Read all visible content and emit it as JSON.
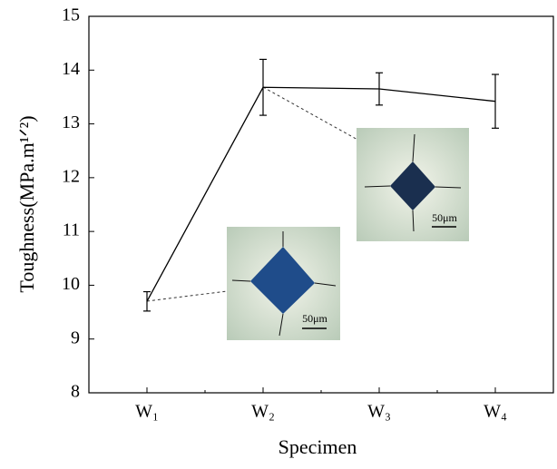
{
  "chart_data": {
    "type": "line",
    "x_label": "Specimen",
    "y_label": "Toughness(MPa.m¹ᐟ²)",
    "categories": [
      "W₁",
      "W₂",
      "W₃",
      "W₄"
    ],
    "values": [
      9.7,
      13.68,
      13.65,
      13.42
    ],
    "errors": [
      0.18,
      0.52,
      0.3,
      0.5
    ],
    "color": "#000000",
    "ylim": [
      8,
      15
    ],
    "yticks": [
      8,
      9,
      10,
      11,
      12,
      13,
      14,
      15
    ],
    "annotations": [
      "50μm",
      "50μm"
    ]
  }
}
